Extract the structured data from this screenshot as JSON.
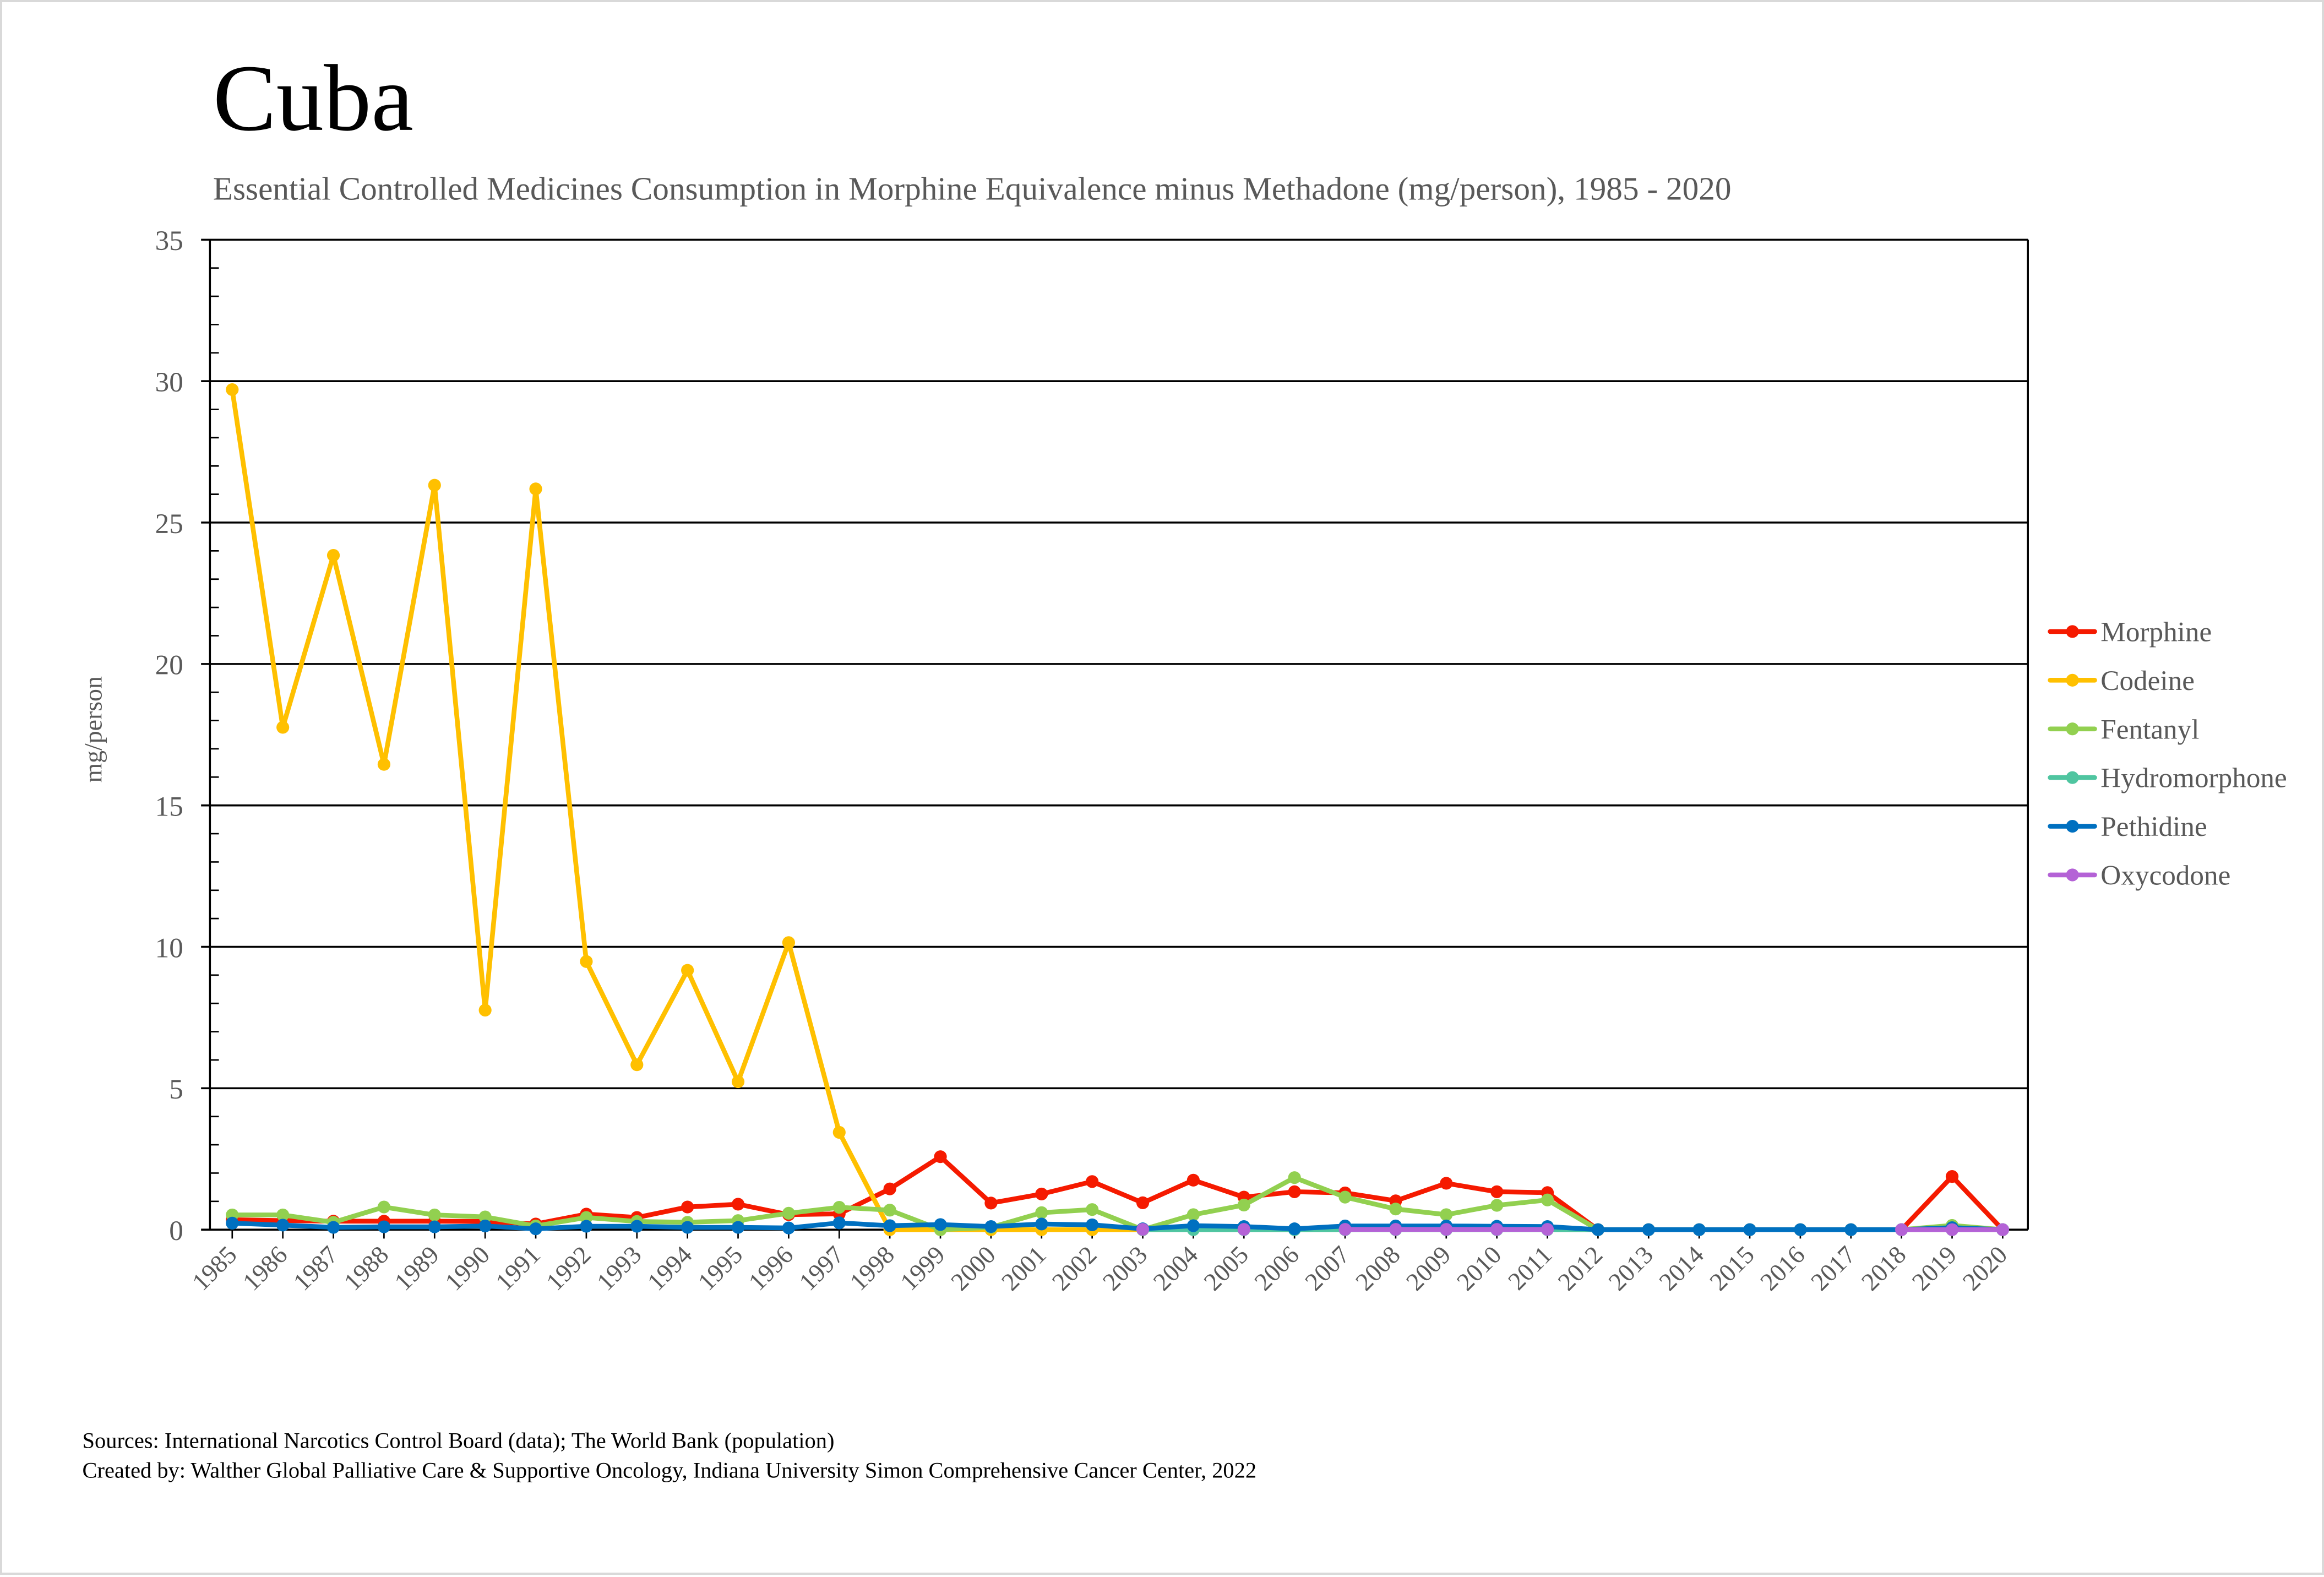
{
  "chart_data": {
    "type": "line",
    "title": "Cuba",
    "subtitle": "Essential Controlled Medicines Consumption in Morphine Equivalence minus Methadone (mg/person), 1985 - 2020",
    "xlabel": "",
    "ylabel": "mg/person",
    "ylim": [
      0,
      35
    ],
    "yticks": [
      0,
      5,
      10,
      15,
      20,
      25,
      30,
      35
    ],
    "ytick_labels": [
      "0",
      "5",
      "10",
      "15",
      "20",
      "25",
      "30",
      "35"
    ],
    "y_minor_step": 1,
    "grid": true,
    "legend_position": "right",
    "x": [
      "1985",
      "1986",
      "1987",
      "1988",
      "1989",
      "1990",
      "1991",
      "1992",
      "1993",
      "1994",
      "1995",
      "1996",
      "1997",
      "1998",
      "1999",
      "2000",
      "2001",
      "2002",
      "2003",
      "2004",
      "2005",
      "2006",
      "2007",
      "2008",
      "2009",
      "2010",
      "2011",
      "2012",
      "2013",
      "2014",
      "2015",
      "2016",
      "2017",
      "2018",
      "2019",
      "2020"
    ],
    "series": [
      {
        "name": "Morphine",
        "color": "#f51a00",
        "values": [
          0.35,
          0.32,
          0.3,
          0.3,
          0.3,
          0.29,
          0.2,
          0.55,
          0.43,
          0.8,
          0.9,
          0.53,
          0.56,
          1.44,
          2.58,
          0.94,
          1.26,
          1.7,
          0.95,
          1.75,
          1.15,
          1.34,
          1.3,
          1.02,
          1.64,
          1.34,
          1.31,
          0,
          0,
          0,
          0,
          0,
          0,
          0,
          1.88,
          0
        ]
      },
      {
        "name": "Codeine",
        "color": "#ffc000",
        "values": [
          29.7,
          17.76,
          23.84,
          16.45,
          26.32,
          7.76,
          26.19,
          9.48,
          5.83,
          9.17,
          5.23,
          10.15,
          3.44,
          0,
          0,
          0,
          0,
          0,
          0,
          null,
          null,
          null,
          null,
          null,
          null,
          null,
          null,
          null,
          null,
          null,
          null,
          null,
          null,
          null,
          null,
          null
        ]
      },
      {
        "name": "Fentanyl",
        "color": "#92d050",
        "values": [
          0.52,
          0.52,
          0.26,
          0.8,
          0.52,
          0.45,
          0.13,
          0.43,
          0.29,
          0.26,
          0.32,
          0.58,
          0.79,
          0.69,
          0,
          0.08,
          0.6,
          0.71,
          0,
          0.53,
          0.87,
          1.84,
          1.15,
          0.73,
          0.53,
          0.86,
          1.05,
          0,
          0,
          0,
          0,
          0,
          0,
          0,
          0.15,
          0
        ]
      },
      {
        "name": "Hydromorphone",
        "color": "#4fc5a0",
        "values": [
          null,
          null,
          null,
          null,
          null,
          null,
          null,
          null,
          null,
          null,
          null,
          null,
          null,
          null,
          null,
          null,
          null,
          null,
          0,
          0,
          0,
          0,
          0,
          0,
          0,
          0,
          0,
          0,
          0,
          0,
          0,
          0,
          0,
          0,
          0,
          0
        ]
      },
      {
        "name": "Pethidine",
        "color": "#0070c0",
        "values": [
          0.23,
          0.16,
          0.08,
          0.1,
          0.1,
          0.13,
          0.03,
          0.12,
          0.12,
          0.08,
          0.08,
          0.06,
          0.24,
          0.14,
          0.18,
          0.11,
          0.2,
          0.17,
          0.03,
          0.14,
          0.11,
          0.03,
          0.13,
          0.13,
          0.13,
          0.12,
          0.11,
          0,
          0,
          0,
          0,
          0,
          0,
          0,
          0.07,
          0
        ]
      },
      {
        "name": "Oxycodone",
        "color": "#b462d6",
        "values": [
          null,
          null,
          null,
          null,
          null,
          null,
          null,
          null,
          null,
          null,
          null,
          null,
          null,
          null,
          null,
          null,
          null,
          null,
          0.01,
          null,
          0.01,
          null,
          0.01,
          0.01,
          0.01,
          0.01,
          0.01,
          null,
          null,
          null,
          null,
          null,
          null,
          0,
          0,
          0
        ]
      }
    ]
  },
  "footer": {
    "sources": "Sources: International Narcotics Control Board (data); The World Bank (population)",
    "created_by": "Created by: Walther Global Palliative Care & Supportive Oncology, Indiana University Simon Comprehensive Cancer Center, 2022"
  }
}
